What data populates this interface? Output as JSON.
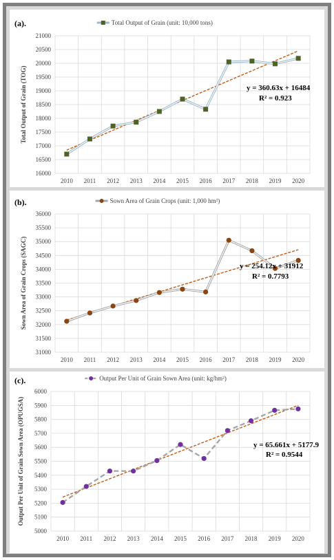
{
  "panels": [
    {
      "label": "(a).",
      "legend": "Total Output of Grain (unit: 10,000 tons)",
      "ylabel": "Total Output of Grain (TOG)",
      "equation": "y = 360.63x + 16484",
      "r2": "R² = 0.923",
      "colors": {
        "series": "#9bb7c9",
        "marker": "#4f6228",
        "trend": "#c55a11"
      },
      "chart_data": {
        "type": "line",
        "x": [
          "2010",
          "2011",
          "2012",
          "2013",
          "2014",
          "2015",
          "2016",
          "2017",
          "2018",
          "2019",
          "2020"
        ],
        "values": [
          16700,
          17250,
          17720,
          17860,
          18250,
          18700,
          18330,
          20050,
          20080,
          19980,
          20180
        ],
        "yticks": [
          16000,
          16500,
          17000,
          17500,
          18000,
          18500,
          19000,
          19500,
          20000,
          20500,
          21000
        ],
        "ylim": [
          16000,
          21000
        ],
        "marker": "square",
        "trend": {
          "slope": 360.63,
          "intercept": 16484
        },
        "grid": true,
        "legend_position": "top"
      }
    },
    {
      "label": "(b).",
      "legend": "Sown Area of Grain Crops (unit: 1,000 hm²)",
      "ylabel": "Sown Area of Grain Crops (SAGC)",
      "equation": "y = 254.12x + 31912",
      "r2": "R² = 0.7793",
      "colors": {
        "series": "#a6a6a6",
        "marker": "#8b4513",
        "trend": "#c55a11"
      },
      "chart_data": {
        "type": "line",
        "x": [
          "2010",
          "2011",
          "2012",
          "2013",
          "2014",
          "2015",
          "2016",
          "2017",
          "2018",
          "2019",
          "2020"
        ],
        "values": [
          32120,
          32420,
          32670,
          32870,
          33160,
          33280,
          33180,
          35050,
          34670,
          34030,
          34320
        ],
        "yticks": [
          31000,
          31500,
          32000,
          32500,
          33000,
          33500,
          34000,
          34500,
          35000,
          35500,
          36000
        ],
        "ylim": [
          31000,
          36000
        ],
        "marker": "circle",
        "trend": {
          "slope": 254.12,
          "intercept": 31912
        },
        "grid": true,
        "legend_position": "top"
      }
    },
    {
      "label": "(c).",
      "legend": "Output Per Unit of Grain Sown Area (unit: kg/hm²)",
      "ylabel": "Output Per Unit of Grain Sown Area (OPUGSA)",
      "equation": "y = 65.661x + 5177.9",
      "r2": "R² = 0.9544",
      "colors": {
        "series": "#a6a6a6",
        "marker": "#7030a0",
        "trend": "#c55a11"
      },
      "chart_data": {
        "type": "line",
        "x": [
          "2010",
          "2011",
          "2012",
          "2013",
          "2014",
          "2015",
          "2016",
          "2017",
          "2018",
          "2019",
          "2020"
        ],
        "values": [
          5205,
          5320,
          5430,
          5430,
          5505,
          5620,
          5520,
          5720,
          5790,
          5865,
          5875
        ],
        "yticks": [
          5000,
          5100,
          5200,
          5300,
          5400,
          5500,
          5600,
          5700,
          5800,
          5900,
          6000
        ],
        "ylim": [
          5000,
          6000
        ],
        "marker": "circle",
        "line_style": "dashed",
        "trend": {
          "slope": 65.661,
          "intercept": 5177.9
        },
        "grid": true,
        "legend_position": "top"
      }
    }
  ]
}
